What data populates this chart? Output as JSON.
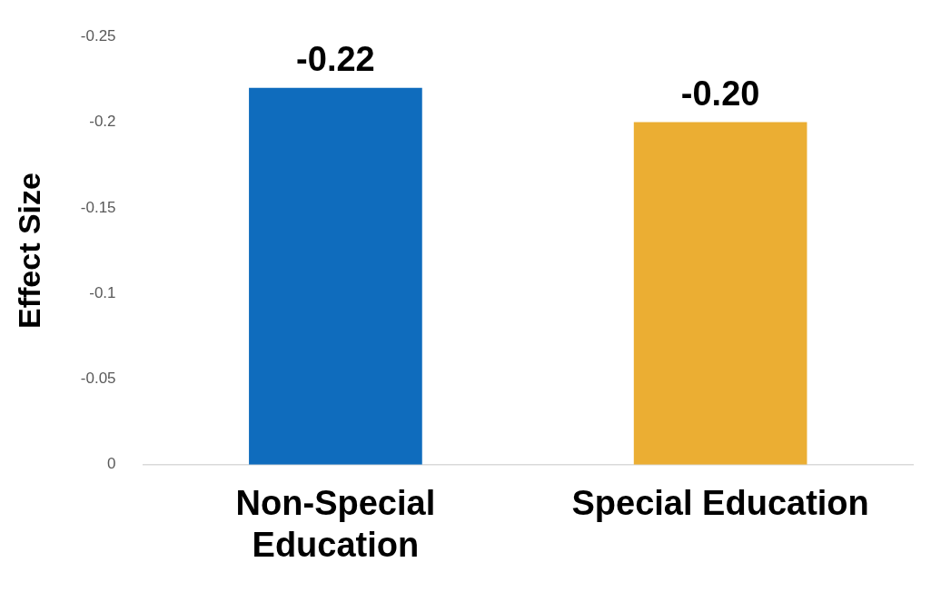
{
  "chart_data": {
    "type": "bar",
    "ylabel": "Effect Size",
    "categories": [
      "Non-Special Education",
      "Special Education"
    ],
    "values": [
      -0.22,
      -0.2
    ],
    "colors": [
      "#0f6cbd",
      "#ebae33"
    ],
    "value_labels": [
      "-0.22",
      "-0.20"
    ],
    "ylim": [
      0,
      -0.25
    ],
    "yticks": [
      {
        "value": -0.25,
        "label": "-0.25"
      },
      {
        "value": -0.2,
        "label": "-0.2"
      },
      {
        "value": -0.15,
        "label": "-0.15"
      },
      {
        "value": -0.1,
        "label": "-0.1"
      },
      {
        "value": -0.05,
        "label": "-0.05"
      },
      {
        "value": 0,
        "label": "0"
      }
    ],
    "grid": false,
    "legend": false
  }
}
